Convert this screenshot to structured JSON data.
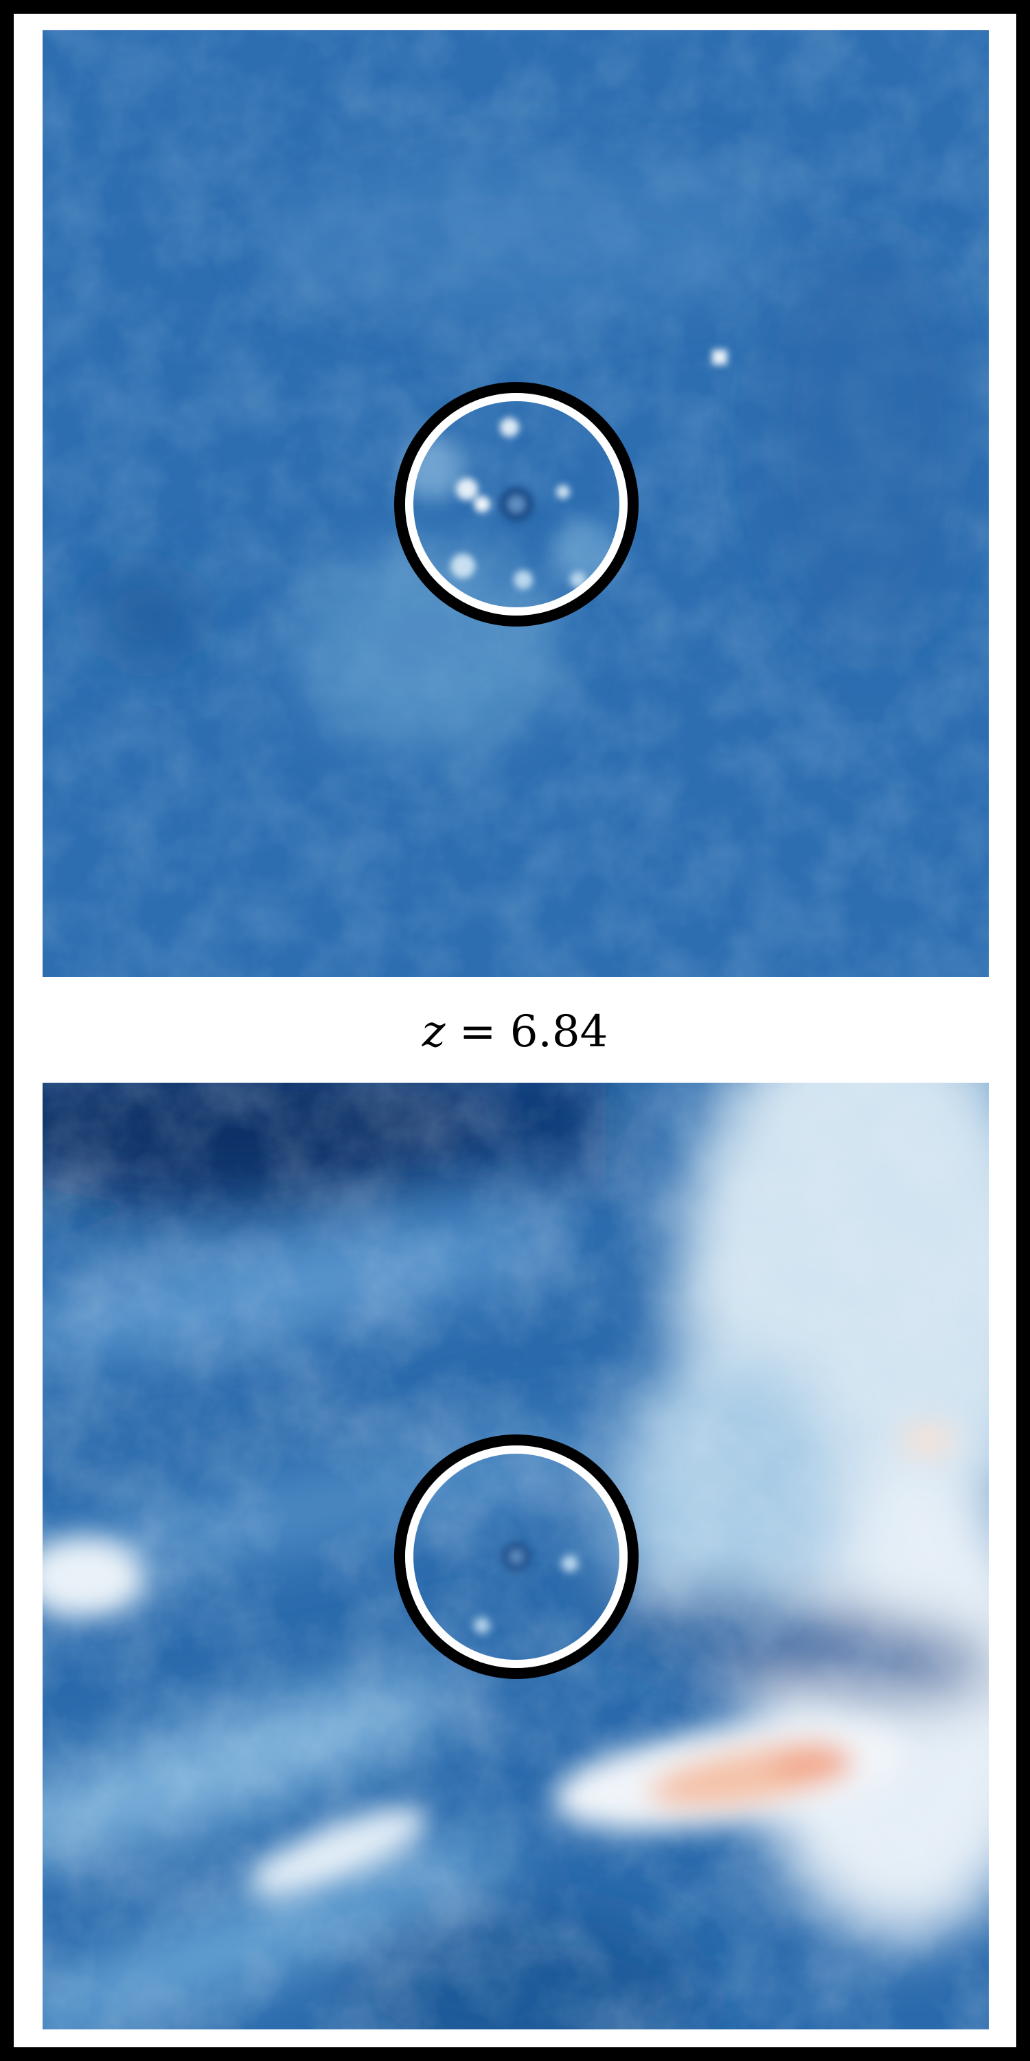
{
  "figure": {
    "redshift_label": {
      "variable": "z",
      "relation": "=",
      "value": "6.84"
    },
    "panels": [
      {
        "name": "top-map",
        "dominant_color": "#2d6eb1"
      },
      {
        "name": "bottom-map",
        "dominant_color": "#2a6aac"
      }
    ],
    "colors": {
      "frame": "#000000",
      "background": "#ffffff",
      "ring_outer": "#000000",
      "ring_inner": "#ffffff",
      "deep_blue": "#08306b",
      "mid_blue": "#2d6eb1",
      "light_blue": "#9ecae1",
      "near_white": "#f2f6fa",
      "warm_peach": "#f4b69a"
    }
  }
}
